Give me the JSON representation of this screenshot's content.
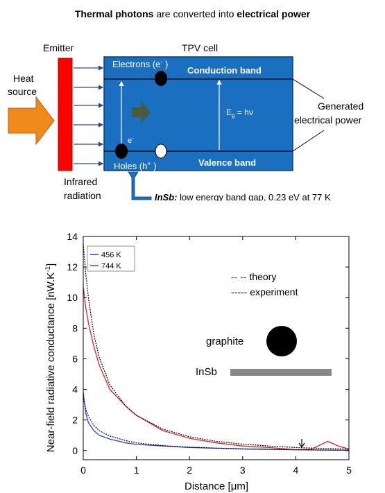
{
  "header": {
    "title_part1_bold": "Thermal photons",
    "title_part2": " are converted into ",
    "title_part3_bold": "electrical power"
  },
  "diagram": {
    "emitter_label": "Emitter",
    "tpv_label": "TPV cell",
    "heat_source_line1": "Heat",
    "heat_source_line2": "source",
    "infrared_line1": "Infrared",
    "infrared_line2": "radiation",
    "electrons_label": "Electrons (e",
    "electrons_sup": "-",
    "electrons_close": " )",
    "conduction_band": "Conduction band",
    "valence_band": "Valence band",
    "holes_label": "Holes (h",
    "holes_sup": "+",
    "holes_close": " )",
    "e_minus": "e",
    "e_minus_sup": "-",
    "eg_label": "E",
    "eg_sub": "g",
    "eg_rhs": " = hν",
    "generated_line1": "Generated",
    "generated_line2": "electrical power",
    "insb_bold": "InSb:",
    "insb_rest": " low energy band gap, 0.23 eV at 77 K",
    "colors": {
      "cell": "#1a6fc0",
      "emitter": "#ff0000",
      "heat_arrow": "#f08a1c",
      "inner_arrow": "#4a5a3c"
    }
  },
  "chart_data": {
    "type": "line",
    "xlabel": "Distance [μm]",
    "ylabel": "Near-field radiative conductance [nW.K",
    "ylabel_sup": "-1",
    "ylabel_close": "]",
    "xlim": [
      0,
      5
    ],
    "ylim": [
      -0.6,
      14
    ],
    "x_ticks": [
      0,
      1,
      2,
      3,
      4,
      5
    ],
    "y_ticks": [
      0,
      2,
      4,
      6,
      8,
      10,
      12,
      14
    ],
    "legend": [
      "456 K",
      "744 K"
    ],
    "legend_placement": "top-left",
    "series": [
      {
        "name": "456 K",
        "color": "#2b3bd6",
        "x": [
          0,
          0.05,
          0.1,
          0.2,
          0.3,
          0.5,
          0.8,
          1.0,
          1.5,
          2.0,
          2.5,
          3.0,
          3.5,
          4.0,
          4.5,
          5.0
        ],
        "y": [
          3.8,
          2.4,
          1.8,
          1.3,
          1.0,
          0.75,
          0.5,
          0.4,
          0.3,
          0.2,
          0.15,
          0.1,
          0.08,
          0.05,
          0.03,
          0.02
        ]
      },
      {
        "name": "744 K",
        "color": "#e02020",
        "x": [
          0,
          0.05,
          0.1,
          0.2,
          0.3,
          0.5,
          0.8,
          1.0,
          1.5,
          2.0,
          2.5,
          3.0,
          3.5,
          4.0,
          4.3,
          4.6,
          4.8,
          5.0
        ],
        "y": [
          10.7,
          9.3,
          8.3,
          6.8,
          5.6,
          4.0,
          2.9,
          2.3,
          1.3,
          0.8,
          0.5,
          0.3,
          0.2,
          0.05,
          0.1,
          0.6,
          0.3,
          0.1
        ]
      },
      {
        "name": "theory 456 K",
        "color": "#000000",
        "x": [
          0,
          0.05,
          0.1,
          0.2,
          0.3,
          0.5,
          0.8,
          1.0,
          1.5,
          2.0,
          2.5,
          3.0,
          3.5,
          4.0,
          4.5,
          5.0
        ],
        "y": [
          3.4,
          2.7,
          2.2,
          1.65,
          1.3,
          0.95,
          0.65,
          0.5,
          0.32,
          0.22,
          0.16,
          0.11,
          0.08,
          0.06,
          0.04,
          0.03
        ]
      },
      {
        "name": "theory 744 K",
        "color": "#000000",
        "x": [
          0,
          0.05,
          0.1,
          0.2,
          0.3,
          0.5,
          0.8,
          1.0,
          1.5,
          2.0,
          2.5,
          3.0,
          3.5,
          4.0,
          4.5,
          5.0
        ],
        "y": [
          13.5,
          11.5,
          9.9,
          7.6,
          6.1,
          4.3,
          2.9,
          2.3,
          1.4,
          0.9,
          0.6,
          0.42,
          0.3,
          0.2,
          0.14,
          0.1
        ]
      }
    ],
    "annotations": {
      "theory_label": "-- -- theory",
      "experiment_label": "----- experiment",
      "graphite_label": "graphite",
      "insb_label": "InSb"
    }
  }
}
